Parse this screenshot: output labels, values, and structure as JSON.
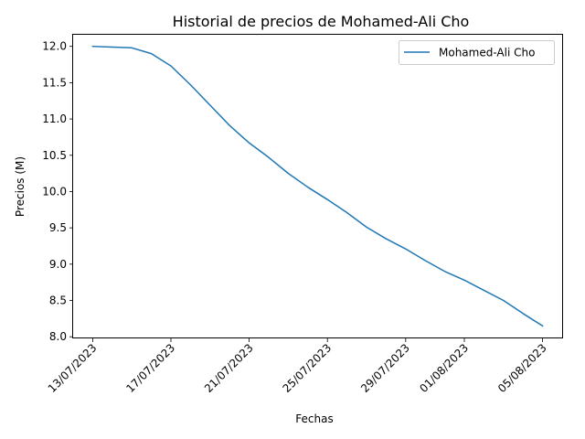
{
  "chart_data": {
    "type": "line",
    "title": "Historial de precios de Mohamed-Ali Cho",
    "xlabel": "Fechas",
    "ylabel": "Precios (M)",
    "xlim": [
      "2023-07-12",
      "2023-08-06"
    ],
    "ylim": [
      7.99,
      12.16
    ],
    "x_ticks": [
      "13/07/2023",
      "17/07/2023",
      "21/07/2023",
      "25/07/2023",
      "29/07/2023",
      "01/08/2023",
      "05/08/2023"
    ],
    "x_tick_dates": [
      "2023-07-13",
      "2023-07-17",
      "2023-07-21",
      "2023-07-25",
      "2023-07-29",
      "2023-08-01",
      "2023-08-05"
    ],
    "y_ticks": [
      "8.0",
      "8.5",
      "9.0",
      "9.5",
      "10.0",
      "10.5",
      "11.0",
      "11.5",
      "12.0"
    ],
    "grid": false,
    "legend_position": "top-right",
    "series": [
      {
        "name": "Mohamed-Ali Cho",
        "color": "#1f77b4",
        "x": [
          "2023-07-13",
          "2023-07-14",
          "2023-07-15",
          "2023-07-16",
          "2023-07-17",
          "2023-07-18",
          "2023-07-19",
          "2023-07-20",
          "2023-07-21",
          "2023-07-22",
          "2023-07-23",
          "2023-07-24",
          "2023-07-25",
          "2023-07-26",
          "2023-07-27",
          "2023-07-28",
          "2023-07-29",
          "2023-07-30",
          "2023-07-31",
          "2023-08-01",
          "2023-08-02",
          "2023-08-03",
          "2023-08-04",
          "2023-08-05"
        ],
        "values": [
          12.0,
          11.99,
          11.98,
          11.9,
          11.73,
          11.47,
          11.19,
          10.91,
          10.67,
          10.47,
          10.25,
          10.06,
          9.89,
          9.71,
          9.51,
          9.35,
          9.21,
          9.05,
          8.9,
          8.78,
          8.64,
          8.5,
          8.32,
          8.15
        ]
      }
    ]
  }
}
